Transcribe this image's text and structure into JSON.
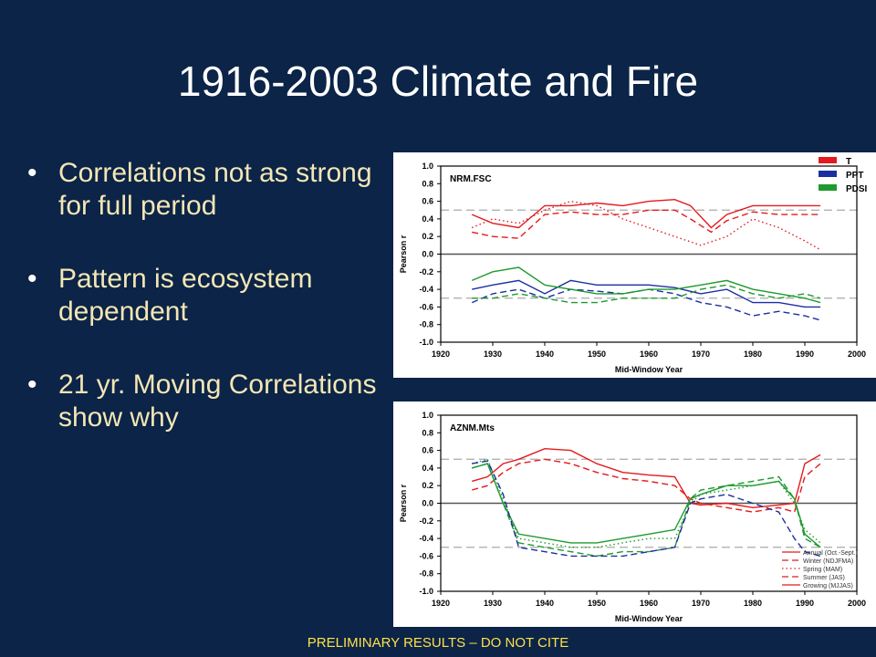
{
  "slide": {
    "title": "1916-2003 Climate and Fire",
    "bullets": [
      "Correlations not as strong for full period",
      "Pattern is ecosystem dependent",
      "21 yr. Moving Correlations show why"
    ],
    "footer": "PRELIMINARY RESULTS – DO NOT CITE"
  },
  "colors": {
    "background": "#0b2447",
    "title": "#ffffff",
    "bullet_text": "#f4e6b5",
    "footer": "#ffe04a",
    "T": "#e41a1c",
    "PPT": "#1c2fa0",
    "PDSI": "#1f9a2e"
  },
  "chart_data": [
    {
      "type": "line",
      "title": "NRM.FSC",
      "xlabel": "Mid-Window Year",
      "ylabel": "Pearson r",
      "xlim": [
        1920,
        2000
      ],
      "ylim": [
        -1.0,
        1.0
      ],
      "x_ticks": [
        "1920",
        "1930",
        "1940",
        "1950",
        "1960",
        "1970",
        "1980",
        "1990",
        "2000"
      ],
      "y_ticks": [
        "1.0",
        "0.8",
        "0.6",
        "0.4",
        "0.2",
        "0.0",
        "-0.2",
        "-0.4",
        "-0.6",
        "-0.8",
        "-1.0"
      ],
      "reference_lines": [
        0.5,
        0.0,
        -0.5
      ],
      "legend": {
        "placement": "top-right",
        "entries": [
          "T",
          "PPT",
          "PDSI"
        ]
      },
      "series": [
        {
          "name": "T",
          "style": "solid",
          "x": [
            1926,
            1930,
            1935,
            1940,
            1945,
            1950,
            1955,
            1960,
            1965,
            1968,
            1972,
            1975,
            1980,
            1985,
            1990,
            1993
          ],
          "y": [
            0.45,
            0.35,
            0.3,
            0.55,
            0.55,
            0.58,
            0.55,
            0.6,
            0.62,
            0.55,
            0.3,
            0.45,
            0.55,
            0.55,
            0.55,
            0.55
          ]
        },
        {
          "name": "T",
          "style": "dashed",
          "x": [
            1926,
            1930,
            1935,
            1940,
            1945,
            1950,
            1955,
            1960,
            1965,
            1968,
            1972,
            1975,
            1980,
            1985,
            1990,
            1993
          ],
          "y": [
            0.25,
            0.2,
            0.18,
            0.45,
            0.48,
            0.45,
            0.45,
            0.5,
            0.5,
            0.4,
            0.25,
            0.38,
            0.48,
            0.45,
            0.45,
            0.45
          ]
        },
        {
          "name": "T",
          "style": "dotted",
          "x": [
            1926,
            1930,
            1935,
            1940,
            1945,
            1950,
            1955,
            1960,
            1965,
            1970,
            1975,
            1980,
            1985,
            1990,
            1993
          ],
          "y": [
            0.3,
            0.4,
            0.35,
            0.5,
            0.6,
            0.55,
            0.4,
            0.3,
            0.2,
            0.1,
            0.2,
            0.4,
            0.3,
            0.15,
            0.05
          ]
        },
        {
          "name": "PPT",
          "style": "solid",
          "x": [
            1926,
            1930,
            1935,
            1940,
            1945,
            1950,
            1955,
            1960,
            1965,
            1970,
            1975,
            1980,
            1985,
            1990,
            1993
          ],
          "y": [
            -0.4,
            -0.35,
            -0.3,
            -0.45,
            -0.3,
            -0.35,
            -0.35,
            -0.35,
            -0.38,
            -0.45,
            -0.4,
            -0.55,
            -0.55,
            -0.6,
            -0.6
          ]
        },
        {
          "name": "PPT",
          "style": "dashed",
          "x": [
            1926,
            1930,
            1935,
            1940,
            1945,
            1950,
            1955,
            1960,
            1965,
            1970,
            1975,
            1980,
            1985,
            1990,
            1993
          ],
          "y": [
            -0.55,
            -0.45,
            -0.4,
            -0.5,
            -0.4,
            -0.42,
            -0.45,
            -0.4,
            -0.45,
            -0.55,
            -0.6,
            -0.7,
            -0.65,
            -0.7,
            -0.75
          ]
        },
        {
          "name": "PDSI",
          "style": "solid",
          "x": [
            1926,
            1930,
            1935,
            1940,
            1945,
            1950,
            1955,
            1960,
            1965,
            1970,
            1975,
            1980,
            1985,
            1990,
            1993
          ],
          "y": [
            -0.3,
            -0.2,
            -0.15,
            -0.35,
            -0.4,
            -0.45,
            -0.45,
            -0.4,
            -0.4,
            -0.35,
            -0.3,
            -0.4,
            -0.45,
            -0.5,
            -0.55
          ]
        },
        {
          "name": "PDSI",
          "style": "dashed",
          "x": [
            1926,
            1930,
            1935,
            1940,
            1945,
            1950,
            1955,
            1960,
            1965,
            1970,
            1975,
            1980,
            1985,
            1990,
            1993
          ],
          "y": [
            -0.5,
            -0.5,
            -0.45,
            -0.5,
            -0.55,
            -0.55,
            -0.5,
            -0.5,
            -0.5,
            -0.4,
            -0.35,
            -0.45,
            -0.5,
            -0.45,
            -0.5
          ]
        }
      ]
    },
    {
      "type": "line",
      "title": "AZNM.Mts",
      "xlabel": "Mid-Window Year",
      "ylabel": "Pearson r",
      "xlim": [
        1920,
        2000
      ],
      "ylim": [
        -1.0,
        1.0
      ],
      "x_ticks": [
        "1920",
        "1930",
        "1940",
        "1950",
        "1960",
        "1970",
        "1980",
        "1990",
        "2000"
      ],
      "y_ticks": [
        "1.0",
        "0.8",
        "0.6",
        "0.4",
        "0.2",
        "0.0",
        "-0.2",
        "-0.4",
        "-0.6",
        "-0.8",
        "-1.0"
      ],
      "reference_lines": [
        0.5,
        0.0,
        -0.5
      ],
      "legend": {
        "placement": "bottom-right",
        "entries": [
          "Annual (Oct.-Sept.)",
          "Winter (NDJFMA)",
          "Spring (MAM)",
          "Summer (JAS)",
          "Growing (MJJAS)"
        ]
      },
      "series": [
        {
          "name": "Annual (Oct.-Sept.)",
          "style": "solid",
          "x": [
            1926,
            1929,
            1932,
            1935,
            1940,
            1945,
            1950,
            1955,
            1960,
            1965,
            1968,
            1970,
            1975,
            1980,
            1985,
            1988,
            1990,
            1993
          ],
          "y": [
            0.25,
            0.3,
            0.45,
            0.5,
            0.62,
            0.6,
            0.45,
            0.35,
            0.32,
            0.3,
            0.0,
            -0.02,
            0.0,
            -0.05,
            -0.02,
            0.0,
            0.45,
            0.55
          ]
        },
        {
          "name": "Winter (NDJFMA)",
          "style": "dashed",
          "x": [
            1926,
            1929,
            1932,
            1935,
            1940,
            1945,
            1950,
            1955,
            1960,
            1965,
            1968,
            1970,
            1975,
            1980,
            1985,
            1988,
            1990,
            1993
          ],
          "y": [
            0.15,
            0.2,
            0.35,
            0.45,
            0.5,
            0.45,
            0.35,
            0.28,
            0.25,
            0.2,
            0.05,
            0.0,
            -0.05,
            -0.1,
            -0.05,
            -0.1,
            0.3,
            0.45
          ]
        },
        {
          "name": "Spring (MAM)",
          "style": "dotted",
          "x": [
            1926,
            1929,
            1932,
            1935,
            1940,
            1945,
            1950,
            1955,
            1960,
            1965,
            1968,
            1970,
            1975,
            1980,
            1985,
            1988,
            1990,
            1993
          ],
          "y": [
            0.45,
            0.5,
            0.05,
            -0.4,
            -0.45,
            -0.5,
            -0.5,
            -0.45,
            -0.4,
            -0.4,
            0.0,
            0.1,
            0.15,
            0.2,
            0.25,
            0.0,
            -0.3,
            -0.45
          ]
        },
        {
          "name": "Summer (JAS)",
          "style": "dashed",
          "x": [
            1926,
            1929,
            1932,
            1935,
            1940,
            1945,
            1950,
            1955,
            1960,
            1965,
            1968,
            1970,
            1975,
            1980,
            1985,
            1988,
            1990,
            1993
          ],
          "y": [
            0.4,
            0.45,
            0.0,
            -0.45,
            -0.5,
            -0.55,
            -0.6,
            -0.55,
            -0.55,
            -0.5,
            0.05,
            0.15,
            0.2,
            0.25,
            0.3,
            0.05,
            -0.4,
            -0.5
          ]
        },
        {
          "name": "Growing (MJJAS)",
          "style": "solid",
          "x": [
            1926,
            1929,
            1932,
            1935,
            1940,
            1945,
            1950,
            1955,
            1960,
            1965,
            1968,
            1970,
            1975,
            1980,
            1985,
            1988,
            1990,
            1993
          ],
          "y": [
            0.4,
            0.45,
            0.0,
            -0.35,
            -0.4,
            -0.45,
            -0.45,
            -0.4,
            -0.35,
            -0.3,
            0.05,
            0.1,
            0.2,
            0.2,
            0.25,
            0.05,
            -0.35,
            -0.5
          ]
        },
        {
          "name": "PPT",
          "style": "dashed",
          "x": [
            1926,
            1929,
            1932,
            1935,
            1940,
            1945,
            1950,
            1955,
            1960,
            1965,
            1968,
            1970,
            1975,
            1980,
            1985,
            1988,
            1990,
            1993
          ],
          "y": [
            0.45,
            0.48,
            0.1,
            -0.5,
            -0.55,
            -0.6,
            -0.6,
            -0.6,
            -0.55,
            -0.5,
            0.0,
            0.05,
            0.1,
            0.0,
            -0.1,
            -0.4,
            -0.55,
            -0.6
          ]
        }
      ]
    }
  ]
}
